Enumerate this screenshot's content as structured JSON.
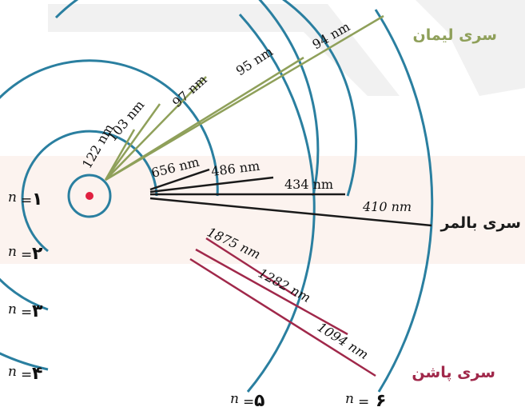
{
  "levels": [
    {
      "n": "n",
      "eq": "=",
      "digit": "۱"
    },
    {
      "n": "n",
      "eq": "=",
      "digit": "۲"
    },
    {
      "n": "n",
      "eq": "=",
      "digit": "۳"
    },
    {
      "n": "n",
      "eq": "=",
      "digit": "۴"
    },
    {
      "n": "n",
      "eq": "=",
      "digit": "۵"
    },
    {
      "n": "n",
      "eq": "=",
      "digit": "۶"
    }
  ],
  "lyman": {
    "name": "سری لیمان",
    "color": "#8fa05a",
    "wavelengths": [
      "122 nm",
      "103 nm",
      "97 nm",
      "95 nm",
      "94 nm"
    ]
  },
  "balmer": {
    "name": "سری بالمر",
    "color": "#1a1a1a",
    "wavelengths": [
      "656 nm",
      "486 nm",
      "434 nm",
      "410 nm"
    ]
  },
  "paschen": {
    "name": "سری پاشن",
    "color": "#a0284a",
    "wavelengths": [
      "1875 nm",
      "1282 nm",
      "1094 nm"
    ]
  },
  "colors": {
    "orbit": "#2a7fa0",
    "nucleus": "#e02040",
    "watermark": "#e8e8e8",
    "watermark_accent": "#f4b0a0"
  }
}
